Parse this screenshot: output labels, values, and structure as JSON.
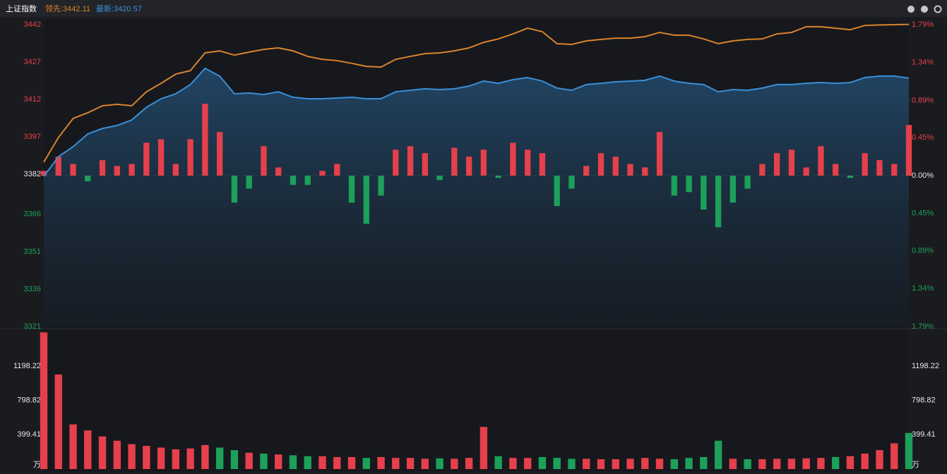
{
  "chart_data": {
    "type": "line",
    "title": "上证指数",
    "series": [
      {
        "name": "领先:3442.11",
        "color": "#d9832b",
        "values": [
          3386.9,
          3396.8,
          3404.4,
          3406.7,
          3409.5,
          3410.1,
          3409.5,
          3415.1,
          3418.5,
          3422.2,
          3423.6,
          3430.7,
          3431.5,
          3429.8,
          3431.0,
          3432.1,
          3432.7,
          3431.5,
          3429.3,
          3428.1,
          3427.6,
          3426.5,
          3425.3,
          3425.0,
          3428.1,
          3429.3,
          3430.4,
          3430.7,
          3431.5,
          3432.7,
          3434.9,
          3436.3,
          3438.3,
          3440.6,
          3439.2,
          3434.4,
          3434.1,
          3435.5,
          3436.1,
          3436.6,
          3436.6,
          3437.2,
          3438.9,
          3437.8,
          3437.8,
          3436.3,
          3434.4,
          3435.5,
          3436.1,
          3436.3,
          3438.3,
          3438.9,
          3441.2,
          3441.2,
          3440.6,
          3440.0,
          3441.7,
          3441.9,
          3442.0,
          3442.11
        ]
      },
      {
        "name": "最新:3420.57",
        "color": "#3a8fd8",
        "values": [
          3381.2,
          3389.1,
          3393.1,
          3398.2,
          3400.4,
          3401.6,
          3403.8,
          3408.9,
          3412.3,
          3414.3,
          3418.0,
          3424.5,
          3421.4,
          3414.3,
          3414.6,
          3414.0,
          3415.1,
          3412.9,
          3412.3,
          3412.3,
          3412.6,
          3412.9,
          3412.3,
          3412.3,
          3415.1,
          3415.7,
          3416.3,
          3416.0,
          3416.3,
          3417.4,
          3419.4,
          3418.5,
          3420.0,
          3420.8,
          3419.4,
          3416.6,
          3415.7,
          3418.0,
          3418.5,
          3419.1,
          3419.4,
          3419.7,
          3421.4,
          3419.4,
          3418.5,
          3418.0,
          3415.1,
          3416.0,
          3415.7,
          3416.6,
          3418.0,
          3418.0,
          3418.5,
          3418.8,
          3418.5,
          3418.8,
          3420.8,
          3421.4,
          3421.4,
          3420.57
        ]
      }
    ],
    "ylim": [
      3321,
      3442
    ],
    "yticks": [
      3442,
      3427,
      3412,
      3397,
      3382,
      3366,
      3351,
      3336,
      3321
    ],
    "y2lim": [
      -1.79,
      1.79
    ],
    "y2ticks": [
      {
        "value": 1.79,
        "label": "1.79%"
      },
      {
        "value": 1.34,
        "label": "1.34%"
      },
      {
        "value": 0.89,
        "label": "0.89%"
      },
      {
        "value": 0.45,
        "label": "0.45%"
      },
      {
        "value": 0,
        "label": "0.00%"
      },
      {
        "value": -0.45,
        "label": "0.45%"
      },
      {
        "value": -0.89,
        "label": "0.89%"
      },
      {
        "value": -1.34,
        "label": "1.34%"
      },
      {
        "value": -1.79,
        "label": "1.79%"
      }
    ],
    "up_color": "#e5404c",
    "down_color": "#1ca05a",
    "indicator": {
      "values": [
        3383.4,
        3389.1,
        3386.2,
        3379.2,
        3387.7,
        3385.4,
        3386.2,
        3394.7,
        3396.1,
        3386.2,
        3396.1,
        3410.3,
        3399.0,
        3370.7,
        3376.3,
        3393.3,
        3384.8,
        3377.8,
        3377.8,
        3383.4,
        3386.2,
        3370.7,
        3362.2,
        3373.5,
        3391.9,
        3393.3,
        3390.5,
        3379.7,
        3392.7,
        3389.1,
        3391.9,
        3380.6,
        3394.7,
        3391.9,
        3390.5,
        3369.3,
        3376.3,
        3385.4,
        3390.5,
        3389.1,
        3386.2,
        3384.8,
        3399.0,
        3373.5,
        3374.9,
        3367.9,
        3360.8,
        3370.7,
        3376.3,
        3386.2,
        3390.5,
        3391.9,
        3384.8,
        3393.3,
        3386.2,
        3380.6,
        3390.5,
        3387.7,
        3386.2,
        3401.8
      ]
    },
    "volume": {
      "values": [
        1590,
        1100,
        520,
        450,
        380,
        330,
        290,
        270,
        250,
        230,
        240,
        280,
        250,
        220,
        190,
        180,
        170,
        160,
        150,
        150,
        140,
        140,
        130,
        140,
        130,
        130,
        120,
        125,
        120,
        130,
        490,
        150,
        130,
        130,
        140,
        130,
        120,
        120,
        115,
        115,
        120,
        130,
        120,
        115,
        130,
        140,
        330,
        120,
        115,
        115,
        120,
        120,
        125,
        130,
        140,
        150,
        180,
        220,
        300,
        420
      ],
      "ylim": [
        0,
        1600
      ],
      "yticks": [
        399.41,
        798.82,
        1198.22
      ],
      "unit": "万"
    }
  }
}
